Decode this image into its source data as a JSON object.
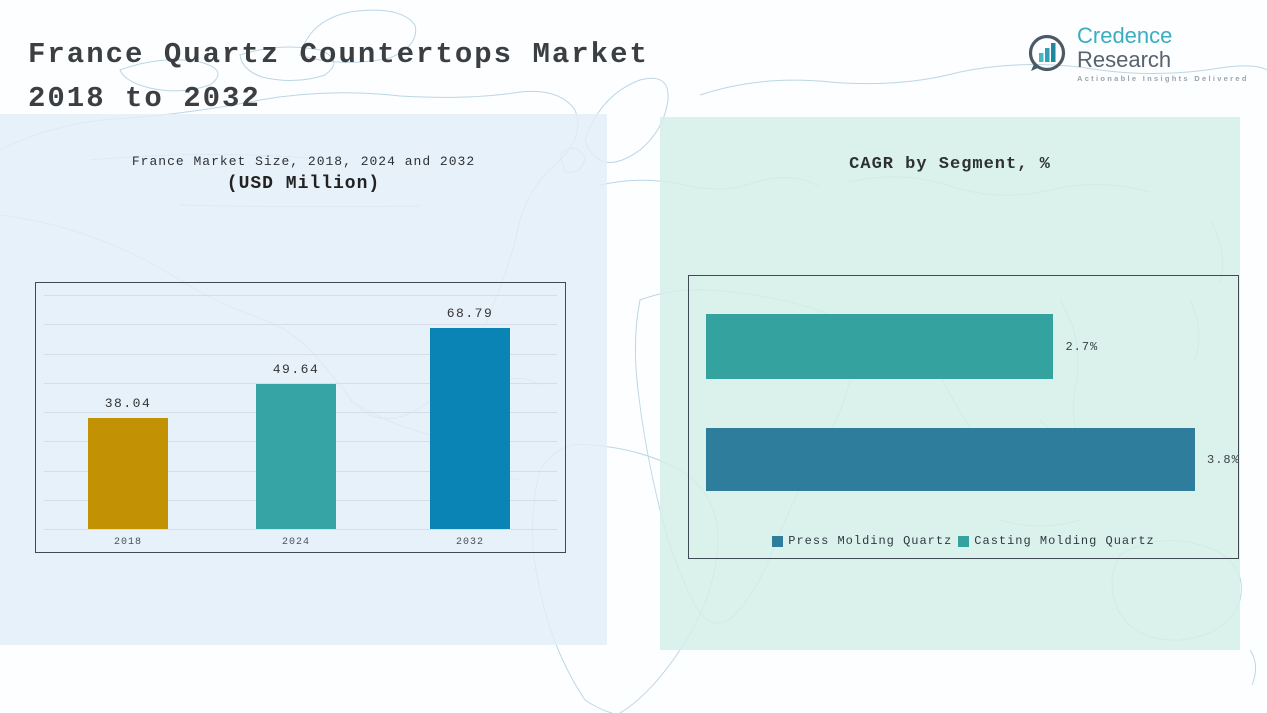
{
  "page": {
    "title_line1": "France Quartz Countertops Market",
    "title_line2": "2018 to 2032"
  },
  "logo": {
    "icon": "bar-chart-bubble-icon",
    "brand_primary": "Credence",
    "brand_secondary": "Research",
    "tagline": "Actionable Insights Delivered",
    "colors": {
      "brand_primary": "#3badbf",
      "brand_secondary": "#57636e",
      "icon_ring": "#4b5a66",
      "icon_bars": "#2f9fb3"
    }
  },
  "chart_data": [
    {
      "type": "bar",
      "title": "France Market Size, 2018, 2024 and 2032",
      "subtitle": "(USD Million)",
      "categories": [
        "2018",
        "2024",
        "2032"
      ],
      "values": [
        38.04,
        49.64,
        68.79
      ],
      "value_labels": [
        "38.04",
        "49.64",
        "68.79"
      ],
      "bar_colors": [
        "#c29104",
        "#36a4a4",
        "#0984b5"
      ],
      "ylim": [
        0,
        80
      ],
      "gridline_step": 10,
      "grid": true,
      "legend_position": "none"
    },
    {
      "type": "bar-horizontal",
      "title": "CAGR by Segment, %",
      "series": [
        {
          "name": "Casting Molding Quartz",
          "value": 2.7,
          "label": "2.7%",
          "color": "#34a3a0"
        },
        {
          "name": "Press Molding Quartz",
          "value": 3.8,
          "label": "3.8%",
          "color": "#2e7d9c"
        }
      ],
      "xlim": [
        0,
        4.3
      ],
      "grid": false,
      "legend_position": "bottom",
      "legend": [
        {
          "label": "Press Molding Quartz",
          "color": "#2e7d9c"
        },
        {
          "label": "Casting Molding Quartz",
          "color": "#34a3a0"
        }
      ]
    }
  ]
}
